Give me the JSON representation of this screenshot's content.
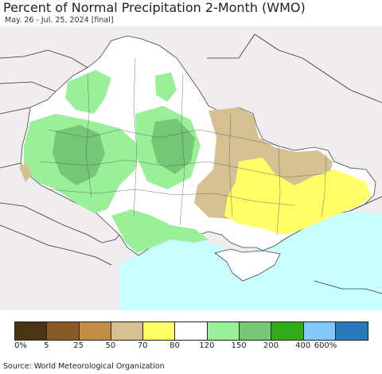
{
  "title": "Percent of Normal Precipitation 2-Month (WMO)",
  "subtitle": "May. 26 - Jul. 25, 2024 [final]",
  "legend": {
    "colors": [
      "#4a3514",
      "#8a5a24",
      "#c48d45",
      "#d4c090",
      "#ffff66",
      "#ffffff",
      "#99f099",
      "#74c774",
      "#32aa19",
      "#7fc9ff",
      "#2a79bb"
    ],
    "labels": [
      "0%",
      "5",
      "25",
      "50",
      "70",
      "80",
      "120",
      "150",
      "200",
      "400",
      "600%"
    ]
  },
  "source": "Source: World Meteorological Organization",
  "map_colors": {
    "land_bg": "#f0ecf0",
    "sea": "#c8ffff",
    "normal": "#ffffff",
    "wet": "#99f099",
    "very_wet": "#74c774",
    "dry_tan": "#d4c090",
    "dry_yellow": "#ffff66",
    "border": "#444444"
  }
}
